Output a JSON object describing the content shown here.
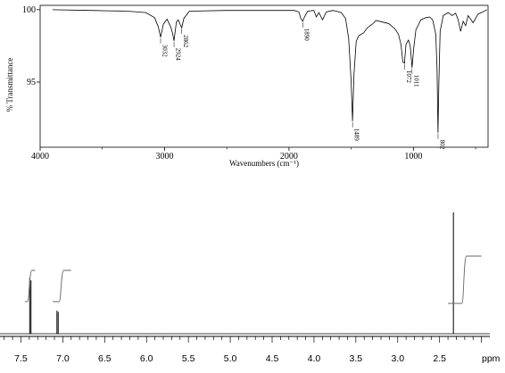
{
  "chart_data": [
    {
      "type": "line",
      "xlabel": "Wavenumbers (cm⁻¹)",
      "ylabel": "% Transmittance",
      "xlim": [
        4000,
        400
      ],
      "ylim": [
        90.5,
        100.3
      ],
      "x_reversed": true,
      "x_ticks": [
        "4000",
        "3000",
        "2000",
        "1000"
      ],
      "y_ticks": [
        "100",
        "95"
      ],
      "series": [
        {
          "x": [
            3900,
            3600,
            3300,
            3150,
            3080,
            3050,
            3032,
            3010,
            2980,
            2950,
            2935,
            2924,
            2905,
            2890,
            2875,
            2862,
            2845,
            2800,
            2500,
            2200,
            1960,
            1920,
            1905,
            1890,
            1875,
            1850,
            1800,
            1780,
            1760,
            1730,
            1700,
            1650,
            1620,
            1580,
            1545,
            1520,
            1500,
            1489,
            1478,
            1460,
            1440,
            1420,
            1400,
            1370,
            1330,
            1300,
            1250,
            1200,
            1150,
            1120,
            1100,
            1085,
            1072,
            1060,
            1040,
            1025,
            1011,
            997,
            980,
            940,
            900,
            870,
            845,
            820,
            810,
            802,
            795,
            785,
            760,
            720,
            690,
            660,
            640,
            620,
            600,
            580,
            560,
            520,
            480,
            440,
            410
          ],
          "y": [
            100.0,
            99.95,
            99.9,
            99.8,
            99.45,
            98.8,
            98.1,
            99.0,
            99.35,
            98.8,
            98.35,
            97.85,
            99.15,
            99.3,
            99.0,
            98.75,
            99.4,
            99.9,
            99.95,
            99.95,
            99.95,
            99.85,
            99.4,
            99.2,
            99.5,
            99.9,
            99.95,
            99.5,
            99.8,
            99.3,
            99.85,
            99.95,
            99.9,
            99.8,
            99.4,
            98.0,
            95.0,
            92.3,
            95.5,
            97.8,
            98.2,
            98.3,
            98.4,
            98.75,
            99.0,
            99.25,
            99.15,
            99.05,
            98.7,
            98.3,
            97.6,
            96.4,
            96.3,
            97.6,
            97.9,
            97.5,
            96.0,
            97.4,
            98.6,
            99.3,
            99.45,
            99.5,
            99.3,
            98.3,
            96.0,
            91.5,
            95.0,
            98.5,
            99.6,
            99.8,
            99.6,
            99.75,
            99.3,
            98.5,
            99.2,
            98.9,
            99.6,
            99.1,
            99.7,
            99.85,
            100.0
          ]
        }
      ],
      "annotations": [
        {
          "x": 3032,
          "label": "3032"
        },
        {
          "x": 2924,
          "label": "2924"
        },
        {
          "x": 2862,
          "label": "2862"
        },
        {
          "x": 1890,
          "label": "1890"
        },
        {
          "x": 1489,
          "label": "1489"
        },
        {
          "x": 1072,
          "label": "1072"
        },
        {
          "x": 1011,
          "label": "1011"
        },
        {
          "x": 802,
          "label": "802"
        }
      ]
    },
    {
      "type": "line",
      "xlabel": "ppm",
      "xlim": [
        7.75,
        1.9
      ],
      "x_reversed": true,
      "x_ticks": [
        "7.5",
        "7.0",
        "6.5",
        "6.0",
        "5.5",
        "5.0",
        "4.5",
        "4.0",
        "3.5",
        "3.0",
        "2.5"
      ],
      "peaks": [
        {
          "ppm": 7.395,
          "height": 0.46
        },
        {
          "ppm": 7.38,
          "height": 0.44
        },
        {
          "ppm": 7.07,
          "height": 0.19
        },
        {
          "ppm": 7.055,
          "height": 0.18
        },
        {
          "ppm": 2.335,
          "height": 1.0
        }
      ],
      "integrals": [
        {
          "from": 7.45,
          "to": 7.33
        },
        {
          "from": 7.12,
          "to": 6.9
        },
        {
          "from": 2.4,
          "to": 2.0
        }
      ]
    }
  ]
}
